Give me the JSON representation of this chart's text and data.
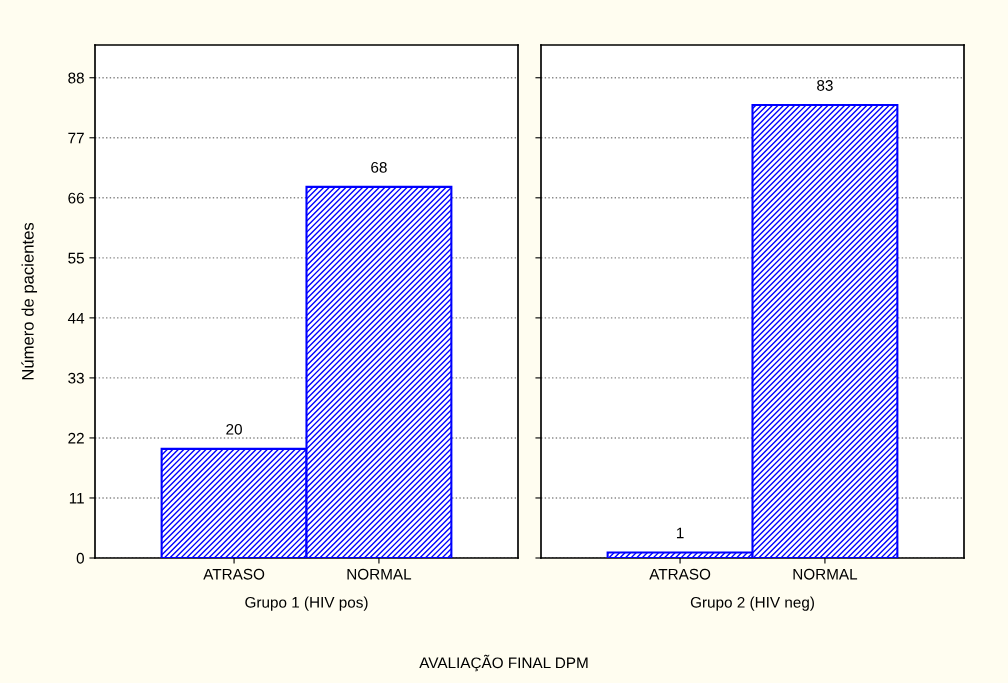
{
  "chart_data": [
    {
      "type": "bar",
      "xlabel": "Grupo 1 (HIV pos)",
      "ylabel": "Número de pacientes",
      "categories": [
        "ATRASO",
        "NORMAL"
      ],
      "series": [
        {
          "color": "#0000ff",
          "values": [
            20,
            68
          ]
        }
      ],
      "ylim": [
        0,
        94
      ],
      "yticks": [
        0,
        11,
        22,
        33,
        44,
        55,
        66,
        77,
        88
      ],
      "grid": "y",
      "data_labels": true,
      "annotations": [
        "AVALIAÇÃO FINAL DPM"
      ]
    },
    {
      "type": "bar",
      "xlabel": "Grupo 2 (HIV neg)",
      "categories": [
        "ATRASO",
        "NORMAL"
      ],
      "series": [
        {
          "color": "#0000ff",
          "values": [
            1,
            83
          ]
        }
      ],
      "ylim": [
        0,
        94
      ],
      "yticks": [
        0,
        11,
        22,
        33,
        44,
        55,
        66,
        77,
        88
      ],
      "grid": "y",
      "data_labels": true,
      "tick_labels": "x"
    }
  ]
}
